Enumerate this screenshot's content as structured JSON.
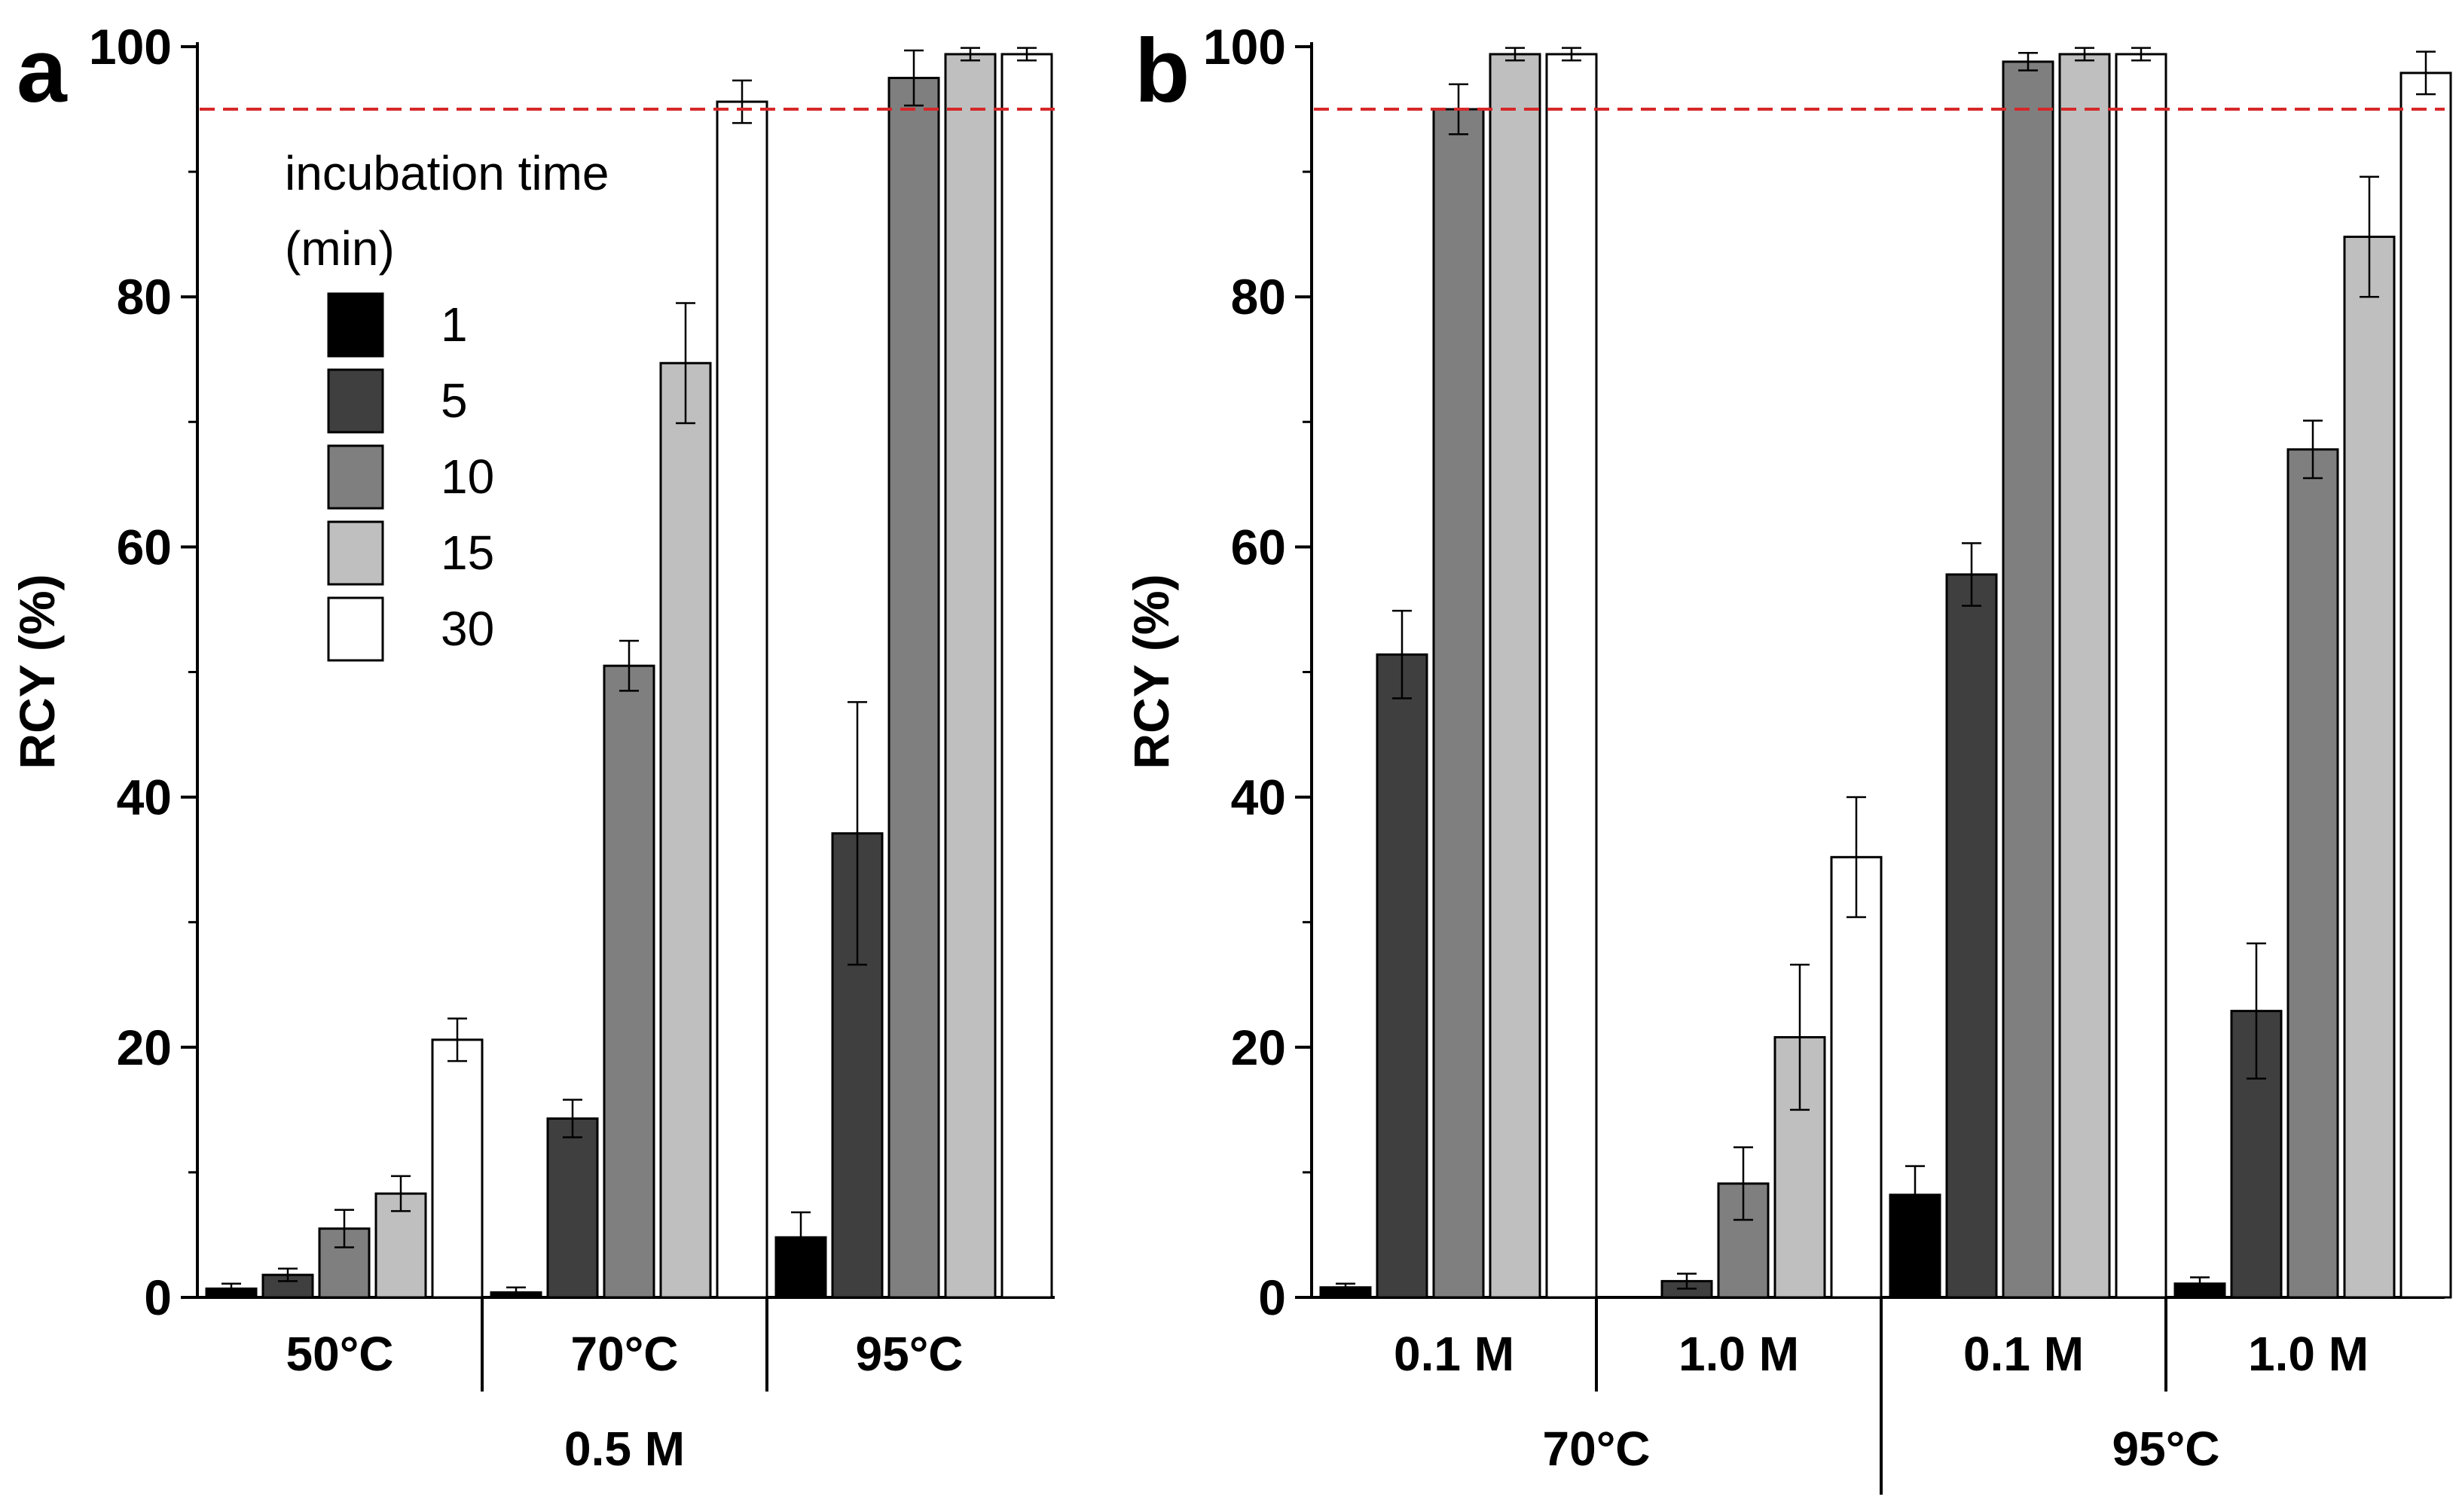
{
  "colors": {
    "1": "#000000",
    "5": "#3f3f3f",
    "10": "#7f7f7f",
    "15": "#bfbfbf",
    "30": "#ffffff",
    "threshold": "#d62728"
  },
  "chart_data": [
    {
      "panel": "a",
      "type": "bar",
      "ylabel": "RCY (%)",
      "ylim": [
        0,
        100
      ],
      "yticks": [
        "0",
        "20",
        "40",
        "60",
        "80",
        "100"
      ],
      "threshold": 95,
      "legend": {
        "title_line1": "incubation time",
        "title_line2": "(min)",
        "entries": [
          "1",
          "5",
          "10",
          "15",
          "30"
        ],
        "placement": "top-left"
      },
      "categories": [
        "50°C",
        "70°C",
        "95°C"
      ],
      "groups": [
        {
          "label": "0.5 M",
          "span": [
            0,
            2
          ]
        }
      ],
      "series": [
        {
          "name": "1",
          "values": [
            0.7,
            0.4,
            4.8
          ],
          "errors": [
            0.4,
            0.4,
            2.0
          ]
        },
        {
          "name": "5",
          "values": [
            1.8,
            14.3,
            37.1
          ],
          "errors": [
            0.5,
            1.5,
            10.5
          ]
        },
        {
          "name": "10",
          "values": [
            5.5,
            50.5,
            97.5
          ],
          "errors": [
            1.5,
            2.0,
            2.2
          ]
        },
        {
          "name": "15",
          "values": [
            8.3,
            74.7,
            99.4
          ],
          "errors": [
            1.4,
            4.8,
            0.5
          ]
        },
        {
          "name": "30",
          "values": [
            20.6,
            95.6,
            99.4
          ],
          "errors": [
            1.7,
            1.7,
            0.5
          ]
        }
      ]
    },
    {
      "panel": "b",
      "type": "bar",
      "ylabel": "RCY (%)",
      "ylim": [
        0,
        100
      ],
      "yticks": [
        "0",
        "20",
        "40",
        "60",
        "80",
        "100"
      ],
      "threshold": 95,
      "categories": [
        "0.1 M",
        "1.0 M",
        "0.1 M",
        "1.0 M"
      ],
      "groups": [
        {
          "label": "70°C",
          "span": [
            0,
            1
          ]
        },
        {
          "label": "95°C",
          "span": [
            2,
            3
          ]
        }
      ],
      "series": [
        {
          "name": "1",
          "values": [
            0.8,
            0,
            8.2,
            1.1
          ],
          "errors": [
            0.3,
            0,
            2.3,
            0.5
          ]
        },
        {
          "name": "5",
          "values": [
            51.4,
            1.3,
            57.8,
            22.9
          ],
          "errors": [
            3.5,
            0.6,
            2.5,
            5.4
          ]
        },
        {
          "name": "10",
          "values": [
            95.0,
            9.1,
            98.8,
            67.8
          ],
          "errors": [
            2.0,
            2.9,
            0.7,
            2.3
          ]
        },
        {
          "name": "15",
          "values": [
            99.4,
            20.8,
            99.4,
            84.8
          ],
          "errors": [
            0.5,
            5.8,
            0.5,
            4.8
          ]
        },
        {
          "name": "30",
          "values": [
            99.4,
            35.2,
            99.4,
            97.9
          ],
          "errors": [
            0.5,
            4.8,
            0.5,
            1.7
          ]
        }
      ]
    }
  ]
}
